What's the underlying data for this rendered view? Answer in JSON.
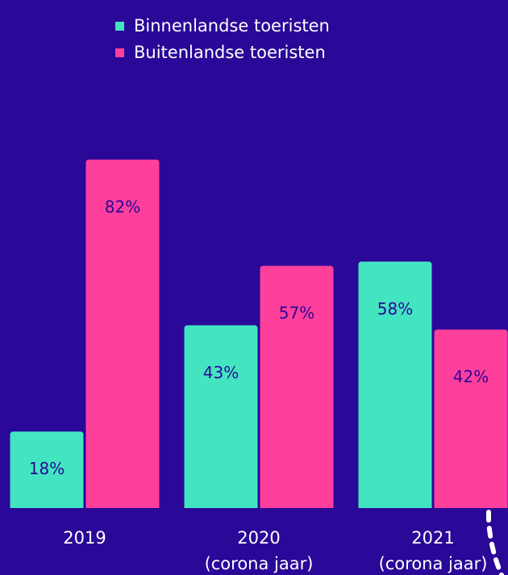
{
  "chart_data": {
    "type": "bar",
    "categories": [
      [
        "2019"
      ],
      [
        "2020",
        "(corona jaar)"
      ],
      [
        "2021",
        "(corona jaar)"
      ]
    ],
    "series": [
      {
        "name": "Binnenlandse toeristen",
        "color": "#43e5c0",
        "values": [
          18,
          43,
          58
        ],
        "value_labels": [
          "18%",
          "43%",
          "58%"
        ]
      },
      {
        "name": "Buitenlandse toeristen",
        "color": "#ff3f9c",
        "values": [
          82,
          57,
          42
        ],
        "value_labels": [
          "82%",
          "57%",
          "42%"
        ]
      }
    ],
    "ylim": [
      0,
      100
    ],
    "legend": "top"
  }
}
